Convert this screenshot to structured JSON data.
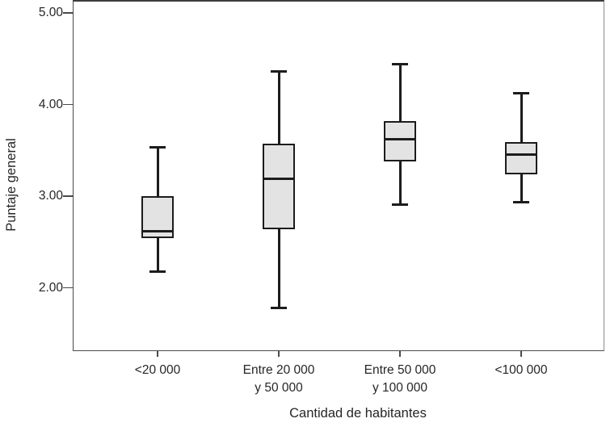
{
  "chart_data": {
    "type": "boxplot",
    "title": "",
    "xlabel": "Cantidad de habitantes",
    "ylabel": "Puntaje general",
    "grid": false,
    "legend": false,
    "ylim": [
      1.31,
      5.13
    ],
    "y_ticks": [
      {
        "label": "5.00",
        "value": 5.0
      },
      {
        "label": "4.00",
        "value": 4.0
      },
      {
        "label": "3.00",
        "value": 3.0
      },
      {
        "label": "2.00",
        "value": 2.0
      }
    ],
    "categories": [
      {
        "lines": [
          "<20 000"
        ]
      },
      {
        "lines": [
          "Entre 20 000",
          "y 50 000"
        ]
      },
      {
        "lines": [
          "Entre 50 000",
          "y 100 000"
        ]
      },
      {
        "lines": [
          "<100 000"
        ]
      }
    ],
    "series": [
      {
        "category": "<20 000",
        "whisker_low": 2.18,
        "q1": 2.54,
        "median": 2.62,
        "q3": 3.0,
        "whisker_high": 3.53
      },
      {
        "category": "Entre 20 000 y 50 000",
        "whisker_low": 1.78,
        "q1": 2.64,
        "median": 3.19,
        "q3": 3.57,
        "whisker_high": 4.36
      },
      {
        "category": "Entre 50 000 y 100 000",
        "whisker_low": 2.91,
        "q1": 3.38,
        "median": 3.62,
        "q3": 3.82,
        "whisker_high": 4.44
      },
      {
        "category": "<100 000",
        "whisker_low": 2.93,
        "q1": 3.24,
        "median": 3.45,
        "q3": 3.59,
        "whisker_high": 4.12
      }
    ],
    "colors": {
      "box_fill": "#e3e3e3",
      "box_border": "#1c1c1c",
      "axis": "#4a4a4a",
      "text": "#262626",
      "background": "#ffffff"
    }
  }
}
